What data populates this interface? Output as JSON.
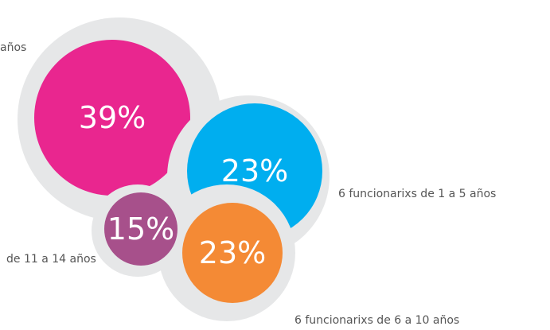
{
  "chart_data": {
    "type": "bubble",
    "categories": [
      "años",
      "6 funcionarixs de 1 a 5 años",
      "de 11 a 14 años",
      "6 funcionarixs de 6 a 10 años"
    ],
    "values": [
      39,
      23,
      15,
      23
    ],
    "value_labels": [
      "39%",
      "23%",
      "15%",
      "23%"
    ],
    "colors": [
      "#e9268f",
      "#00aeef",
      "#a7508b",
      "#f48a35"
    ]
  }
}
